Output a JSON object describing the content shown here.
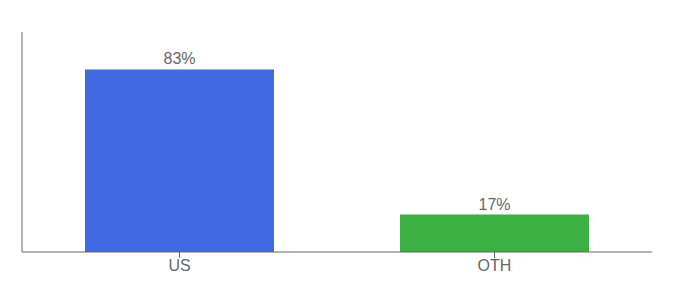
{
  "chart_data": {
    "type": "bar",
    "categories": [
      "US",
      "OTH"
    ],
    "values": [
      83,
      17
    ],
    "value_labels": [
      "83%",
      "17%"
    ],
    "colors": [
      "#4169e1",
      "#3cb043"
    ],
    "ylim": [
      0,
      100
    ],
    "data_labels": true,
    "tick_labels": "x",
    "grid": false
  }
}
